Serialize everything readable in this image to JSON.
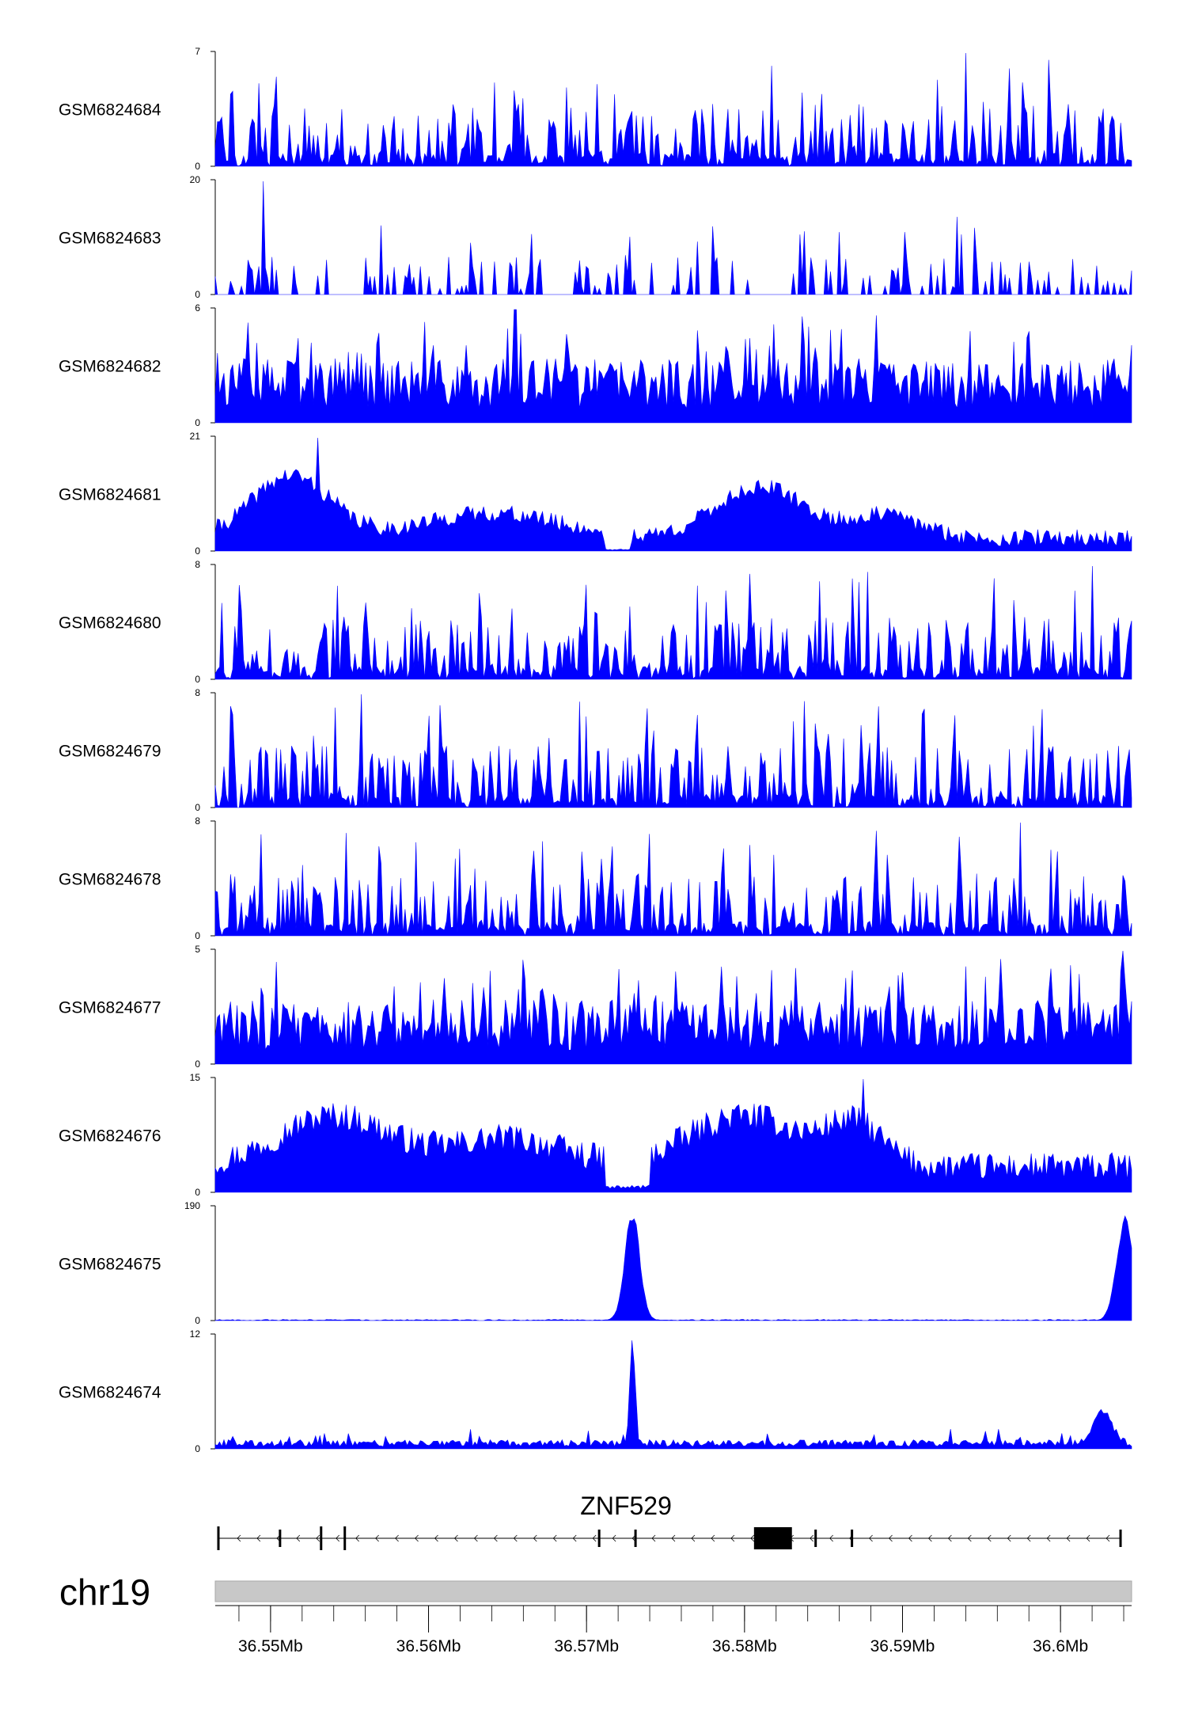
{
  "chart_data": {
    "type": "area",
    "xlabel": "",
    "ylabel": "",
    "x_range": [
      36.5465,
      36.6045
    ],
    "tracks": [
      {
        "name": "GSM6824684",
        "ymax": 7,
        "ymin": 0,
        "profile": "sparse",
        "peak_x": 36.594,
        "seed": 11
      },
      {
        "name": "GSM6824683",
        "ymax": 20,
        "ymin": 0,
        "profile": "very_sparse",
        "peak_x": 36.5495,
        "seed": 23
      },
      {
        "name": "GSM6824682",
        "ymax": 6,
        "ymin": 0,
        "profile": "dense",
        "peak_x": 36.5655,
        "seed": 37
      },
      {
        "name": "GSM6824681",
        "ymax": 21,
        "ymin": 0,
        "profile": "broad",
        "peak_x": 36.553,
        "seed": 41
      },
      {
        "name": "GSM6824680",
        "ymax": 8,
        "ymin": 0,
        "profile": "sparse",
        "peak_x": 36.602,
        "seed": 53
      },
      {
        "name": "GSM6824679",
        "ymax": 8,
        "ymin": 0,
        "profile": "sparse",
        "peak_x": 36.5558,
        "seed": 67
      },
      {
        "name": "GSM6824678",
        "ymax": 8,
        "ymin": 0,
        "profile": "sparse",
        "peak_x": 36.5975,
        "seed": 71
      },
      {
        "name": "GSM6824677",
        "ymax": 5,
        "ymin": 0,
        "profile": "dense",
        "peak_x": 36.604,
        "seed": 83
      },
      {
        "name": "GSM6824676",
        "ymax": 15,
        "ymin": 0,
        "profile": "broad2",
        "peak_x": 36.5875,
        "seed": 97
      },
      {
        "name": "GSM6824675",
        "ymax": 190,
        "ymin": 0,
        "profile": "peaks",
        "peaks": [
          36.5729,
          36.6035
        ],
        "seed": 101
      },
      {
        "name": "GSM6824674",
        "ymax": 12,
        "ymin": 0,
        "profile": "lowpeaks",
        "peaks": [
          36.5729,
          36.6025
        ],
        "seed": 113
      }
    ],
    "gene": {
      "name": "ZNF529",
      "strand": "-",
      "start": 36.5467,
      "end": 36.6038,
      "exons": [
        36.5467,
        36.5506,
        36.5532,
        36.5547,
        36.5708,
        36.5731,
        36.5816,
        36.5845,
        36.5868,
        36.6038
      ],
      "cds": [
        36.5806,
        36.583
      ]
    },
    "chromosome": "chr19",
    "x_ticks": [
      {
        "value": 36.55,
        "label": "36.55Mb"
      },
      {
        "value": 36.56,
        "label": "36.56Mb"
      },
      {
        "value": 36.57,
        "label": "36.57Mb"
      },
      {
        "value": 36.58,
        "label": "36.58Mb"
      },
      {
        "value": 36.59,
        "label": "36.59Mb"
      },
      {
        "value": 36.6,
        "label": "36.6Mb"
      }
    ],
    "minor_tick_step": 0.002,
    "colors": {
      "signal": "#0000ff",
      "axis": "#000000",
      "ideogram": "#c8c8c8",
      "gene": "#000000"
    }
  }
}
